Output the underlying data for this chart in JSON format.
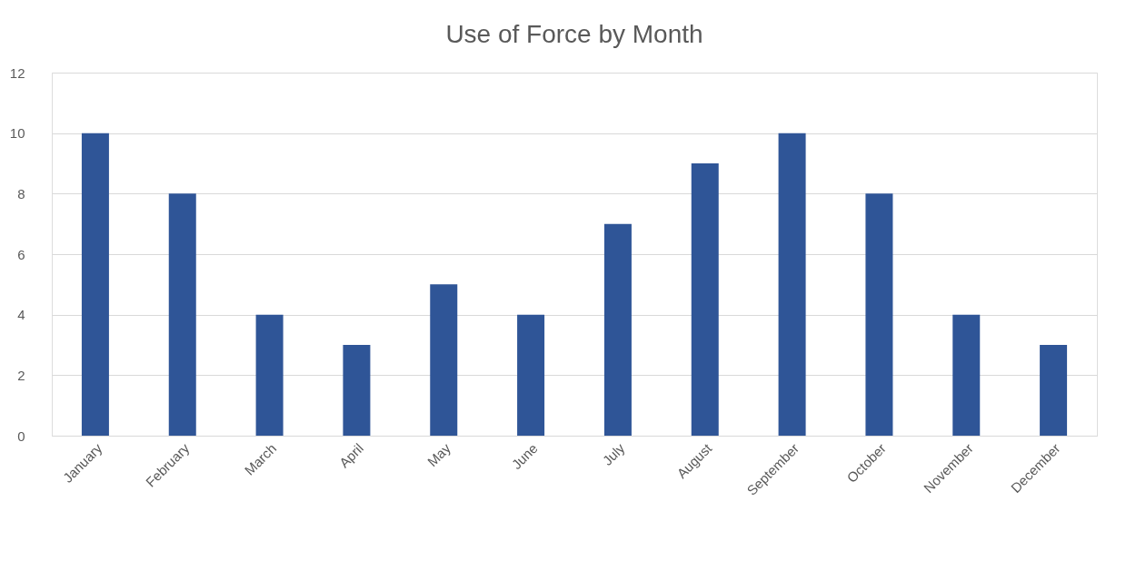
{
  "chart_data": {
    "type": "bar",
    "title": "Use of Force by Month",
    "categories": [
      "January",
      "February",
      "March",
      "April",
      "May",
      "June",
      "July",
      "August",
      "September",
      "October",
      "November",
      "December"
    ],
    "values": [
      10,
      8,
      4,
      3,
      5,
      4,
      7,
      9,
      10,
      8,
      4,
      3
    ],
    "color": "#2f5597",
    "ylim": [
      0,
      12
    ],
    "yticks": [
      0,
      2,
      4,
      6,
      8,
      10,
      12
    ],
    "grid": "y"
  }
}
